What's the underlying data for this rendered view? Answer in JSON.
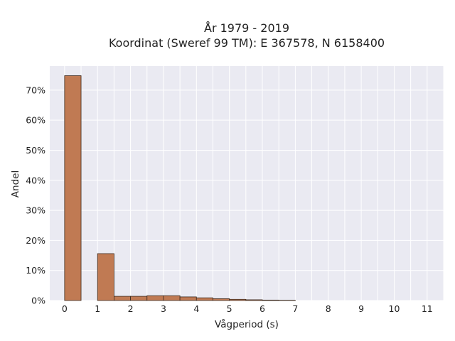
{
  "chart_data": {
    "type": "bar",
    "title_lines": [
      "År 1979 - 2019",
      "Koordinat (Sweref 99 TM): E 367578, N 6158400"
    ],
    "xlabel": "Vågperiod (s)",
    "ylabel": "Andel",
    "bin_width": 0.5,
    "bins": [
      {
        "start": 0.0,
        "value": 74.8
      },
      {
        "start": 0.5,
        "value": 0.0
      },
      {
        "start": 1.0,
        "value": 15.6
      },
      {
        "start": 1.5,
        "value": 1.4
      },
      {
        "start": 2.0,
        "value": 1.4
      },
      {
        "start": 2.5,
        "value": 1.6
      },
      {
        "start": 3.0,
        "value": 1.6
      },
      {
        "start": 3.5,
        "value": 1.2
      },
      {
        "start": 4.0,
        "value": 0.9
      },
      {
        "start": 4.5,
        "value": 0.6
      },
      {
        "start": 5.0,
        "value": 0.4
      },
      {
        "start": 5.5,
        "value": 0.25
      },
      {
        "start": 6.0,
        "value": 0.15
      },
      {
        "start": 6.5,
        "value": 0.1
      }
    ],
    "xlim": [
      -0.45,
      11.5
    ],
    "ylim": [
      0,
      78
    ],
    "x_ticks": [
      0,
      1,
      2,
      3,
      4,
      5,
      6,
      7,
      8,
      9,
      10,
      11
    ],
    "x_tick_labels": [
      "0",
      "1",
      "2",
      "3",
      "4",
      "5",
      "6",
      "7",
      "8",
      "9",
      "10",
      "11"
    ],
    "y_ticks": [
      0,
      10,
      20,
      30,
      40,
      50,
      60,
      70
    ],
    "y_tick_labels": [
      "0%",
      "10%",
      "20%",
      "30%",
      "40%",
      "50%",
      "60%",
      "70%"
    ],
    "grid": true,
    "colors": {
      "bar_fill": "#c07a53",
      "bar_edge": "#3d2a1e",
      "plot_background": "#eaeaf2",
      "grid": "#ffffff"
    }
  }
}
